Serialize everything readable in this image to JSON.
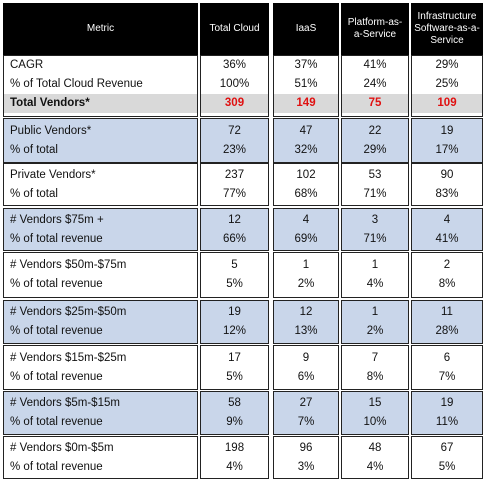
{
  "table": {
    "header": [
      "Metric",
      "Total Cloud",
      "IaaS",
      "Platform-as-a-Service",
      "Infrastructure Software-as-a-Service"
    ],
    "groups": [
      {
        "rows": [
          [
            "CAGR",
            "36%",
            "37%",
            "41%",
            "29%"
          ],
          [
            "% of Total Cloud Revenue",
            "100%",
            "51%",
            "24%",
            "25%"
          ],
          [
            "Total Vendors*",
            "309",
            "149",
            "75",
            "109"
          ]
        ]
      },
      {
        "rows": [
          [
            "Public Vendors*",
            "72",
            "47",
            "22",
            "19"
          ],
          [
            "% of total",
            "23%",
            "32%",
            "29%",
            "17%"
          ]
        ]
      },
      {
        "rows": [
          [
            "Private Vendors*",
            "237",
            "102",
            "53",
            "90"
          ],
          [
            "% of total",
            "77%",
            "68%",
            "71%",
            "83%"
          ]
        ]
      },
      {
        "rows": [
          [
            "# Vendors $75m +",
            "12",
            "4",
            "3",
            "4"
          ],
          [
            "% of total revenue",
            "66%",
            "69%",
            "71%",
            "41%"
          ]
        ]
      },
      {
        "rows": [
          [
            "# Vendors $50m-$75m",
            "5",
            "1",
            "1",
            "2"
          ],
          [
            "% of total revenue",
            "5%",
            "2%",
            "4%",
            "8%"
          ]
        ]
      },
      {
        "rows": [
          [
            "# Vendors $25m-$50m",
            "19",
            "12",
            "1",
            "11"
          ],
          [
            "% of total revenue",
            "12%",
            "13%",
            "2%",
            "28%"
          ]
        ]
      },
      {
        "rows": [
          [
            "# Vendors $15m-$25m",
            "17",
            "9",
            "7",
            "6"
          ],
          [
            "% of total revenue",
            "5%",
            "6%",
            "8%",
            "7%"
          ]
        ]
      },
      {
        "rows": [
          [
            "# Vendors $5m-$15m",
            "58",
            "27",
            "15",
            "19"
          ],
          [
            "% of total revenue",
            "9%",
            "7%",
            "10%",
            "11%"
          ]
        ]
      },
      {
        "rows": [
          [
            "# Vendors $0m-$5m",
            "198",
            "96",
            "48",
            "67"
          ],
          [
            "% of total revenue",
            "4%",
            "3%",
            "4%",
            "5%"
          ]
        ]
      }
    ]
  }
}
